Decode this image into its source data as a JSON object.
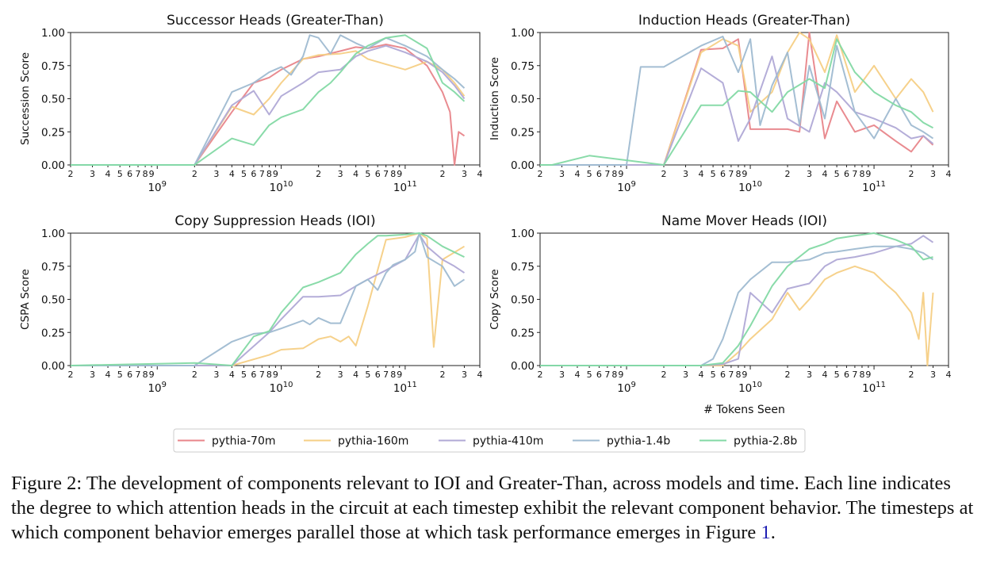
{
  "figure": {
    "legend": [
      {
        "name": "pythia-70m",
        "color": "#e8858a"
      },
      {
        "name": "pythia-160m",
        "color": "#f5cf85"
      },
      {
        "name": "pythia-410m",
        "color": "#b0a9d6"
      },
      {
        "name": "pythia-1.4b",
        "color": "#9fbbd1"
      },
      {
        "name": "pythia-2.8b",
        "color": "#83d9a4"
      }
    ],
    "caption": {
      "label": "Figure 2:",
      "text": "The development of components relevant to IOI and Greater-Than, across models and time. Each line indicates the degree to which attention heads in the circuit at each timestep exhibit the relevant component behavior. The timesteps at which component behavior emerges parallel those at which task performance emerges in Figure",
      "ref": "1",
      "end": "."
    }
  },
  "chart_data": [
    {
      "type": "line",
      "title": "Successor Heads (Greater-Than)",
      "xlabel": "",
      "ylabel": "Succession Score",
      "x_scale": "log",
      "xlim": [
        200000000.0,
        400000000000.0
      ],
      "ylim": [
        0,
        1
      ],
      "yticks": [
        "0.00",
        "0.25",
        "0.50",
        "0.75",
        "1.00"
      ],
      "series": [
        {
          "name": "pythia-70m",
          "x": [
            200000000.0,
            2000000000.0,
            4000000000.0,
            6000000000.0,
            8000000000.0,
            10000000000.0,
            15000000000.0,
            20000000000.0,
            30000000000.0,
            40000000000.0,
            50000000000.0,
            70000000000.0,
            100000000000.0,
            150000000000.0,
            200000000000.0,
            230000000000.0,
            250000000000.0,
            270000000000.0,
            300000000000.0
          ],
          "y": [
            0,
            0,
            0.4,
            0.62,
            0.66,
            0.72,
            0.8,
            0.82,
            0.86,
            0.89,
            0.88,
            0.91,
            0.88,
            0.75,
            0.55,
            0.4,
            0.0,
            0.25,
            0.22
          ]
        },
        {
          "name": "pythia-160m",
          "x": [
            200000000.0,
            2000000000.0,
            4000000000.0,
            6000000000.0,
            8000000000.0,
            10000000000.0,
            15000000000.0,
            20000000000.0,
            30000000000.0,
            40000000000.0,
            50000000000.0,
            70000000000.0,
            100000000000.0,
            150000000000.0,
            200000000000.0,
            250000000000.0,
            300000000000.0
          ],
          "y": [
            0,
            0,
            0.44,
            0.38,
            0.5,
            0.62,
            0.8,
            0.83,
            0.84,
            0.86,
            0.8,
            0.76,
            0.72,
            0.78,
            0.72,
            0.62,
            0.52
          ]
        },
        {
          "name": "pythia-410m",
          "x": [
            200000000.0,
            2000000000.0,
            4000000000.0,
            6000000000.0,
            8000000000.0,
            10000000000.0,
            15000000000.0,
            20000000000.0,
            30000000000.0,
            40000000000.0,
            50000000000.0,
            70000000000.0,
            100000000000.0,
            150000000000.0,
            200000000000.0,
            250000000000.0,
            300000000000.0
          ],
          "y": [
            0,
            0,
            0.45,
            0.56,
            0.38,
            0.52,
            0.62,
            0.7,
            0.72,
            0.82,
            0.86,
            0.9,
            0.85,
            0.78,
            0.7,
            0.6,
            0.5
          ]
        },
        {
          "name": "pythia-1.4b",
          "x": [
            200000000.0,
            2000000000.0,
            4000000000.0,
            6000000000.0,
            8000000000.0,
            10000000000.0,
            12000000000.0,
            15000000000.0,
            17000000000.0,
            20000000000.0,
            25000000000.0,
            30000000000.0,
            40000000000.0,
            50000000000.0,
            70000000000.0,
            100000000000.0,
            150000000000.0,
            200000000000.0,
            250000000000.0,
            300000000000.0
          ],
          "y": [
            0,
            0,
            0.55,
            0.62,
            0.7,
            0.74,
            0.68,
            0.82,
            0.98,
            0.96,
            0.84,
            0.98,
            0.92,
            0.88,
            0.96,
            0.9,
            0.82,
            0.72,
            0.65,
            0.58
          ]
        },
        {
          "name": "pythia-2.8b",
          "x": [
            200000000.0,
            2000000000.0,
            4000000000.0,
            6000000000.0,
            8000000000.0,
            10000000000.0,
            15000000000.0,
            20000000000.0,
            25000000000.0,
            30000000000.0,
            40000000000.0,
            50000000000.0,
            70000000000.0,
            100000000000.0,
            150000000000.0,
            200000000000.0,
            250000000000.0,
            300000000000.0
          ],
          "y": [
            0,
            0,
            0.2,
            0.15,
            0.3,
            0.36,
            0.42,
            0.55,
            0.62,
            0.7,
            0.84,
            0.9,
            0.96,
            0.98,
            0.88,
            0.62,
            0.55,
            0.48
          ]
        }
      ]
    },
    {
      "type": "line",
      "title": "Induction Heads (Greater-Than)",
      "xlabel": "",
      "ylabel": "Induction Score",
      "x_scale": "log",
      "xlim": [
        200000000.0,
        400000000000.0
      ],
      "ylim": [
        0,
        1
      ],
      "yticks": [
        "0.00",
        "0.25",
        "0.50",
        "0.75",
        "1.00"
      ],
      "series": [
        {
          "name": "pythia-70m",
          "x": [
            200000000.0,
            2000000000.0,
            4000000000.0,
            6000000000.0,
            8000000000.0,
            10000000000.0,
            20000000000.0,
            25000000000.0,
            30000000000.0,
            40000000000.0,
            50000000000.0,
            70000000000.0,
            100000000000.0,
            150000000000.0,
            200000000000.0,
            250000000000.0,
            300000000000.0
          ],
          "y": [
            0,
            0,
            0.87,
            0.88,
            0.95,
            0.27,
            0.27,
            0.25,
            1.0,
            0.2,
            0.48,
            0.25,
            0.3,
            0.18,
            0.1,
            0.22,
            0.15
          ]
        },
        {
          "name": "pythia-160m",
          "x": [
            200000000.0,
            2000000000.0,
            4000000000.0,
            6000000000.0,
            8000000000.0,
            10000000000.0,
            15000000000.0,
            20000000000.0,
            25000000000.0,
            30000000000.0,
            40000000000.0,
            50000000000.0,
            70000000000.0,
            100000000000.0,
            150000000000.0,
            200000000000.0,
            250000000000.0,
            300000000000.0
          ],
          "y": [
            0,
            0,
            0.85,
            0.95,
            0.9,
            0.4,
            0.55,
            0.85,
            1.0,
            0.95,
            0.7,
            0.98,
            0.55,
            0.75,
            0.5,
            0.65,
            0.55,
            0.4
          ]
        },
        {
          "name": "pythia-410m",
          "x": [
            200000000.0,
            2000000000.0,
            4000000000.0,
            6000000000.0,
            8000000000.0,
            10000000000.0,
            15000000000.0,
            20000000000.0,
            30000000000.0,
            40000000000.0,
            50000000000.0,
            70000000000.0,
            100000000000.0,
            150000000000.0,
            200000000000.0,
            250000000000.0,
            300000000000.0
          ],
          "y": [
            0,
            0,
            0.73,
            0.62,
            0.18,
            0.35,
            0.82,
            0.35,
            0.25,
            0.62,
            0.55,
            0.4,
            0.35,
            0.28,
            0.2,
            0.22,
            0.16
          ]
        },
        {
          "name": "pythia-1.4b",
          "x": [
            200000000.0,
            250000000.0,
            1000000000.0,
            1300000000.0,
            2000000000.0,
            4000000000.0,
            6000000000.0,
            8000000000.0,
            10000000000.0,
            12000000000.0,
            15000000000.0,
            20000000000.0,
            25000000000.0,
            30000000000.0,
            40000000000.0,
            50000000000.0,
            70000000000.0,
            100000000000.0,
            150000000000.0,
            200000000000.0,
            250000000000.0,
            300000000000.0
          ],
          "y": [
            0,
            0,
            0,
            0.74,
            0.74,
            0.9,
            0.97,
            0.7,
            0.95,
            0.3,
            0.6,
            0.85,
            0.3,
            0.75,
            0.35,
            0.9,
            0.4,
            0.2,
            0.5,
            0.3,
            0.25,
            0.2
          ]
        },
        {
          "name": "pythia-2.8b",
          "x": [
            200000000.0,
            250000000.0,
            500000000.0,
            2000000000.0,
            4000000000.0,
            6000000000.0,
            8000000000.0,
            10000000000.0,
            15000000000.0,
            20000000000.0,
            30000000000.0,
            40000000000.0,
            50000000000.0,
            70000000000.0,
            100000000000.0,
            150000000000.0,
            200000000000.0,
            250000000000.0,
            300000000000.0
          ],
          "y": [
            0,
            0,
            0.07,
            0,
            0.45,
            0.45,
            0.56,
            0.55,
            0.4,
            0.55,
            0.65,
            0.58,
            0.95,
            0.7,
            0.55,
            0.45,
            0.4,
            0.32,
            0.28
          ]
        }
      ]
    },
    {
      "type": "line",
      "title": "Copy Suppression Heads (IOI)",
      "xlabel": "",
      "ylabel": "CSPA Score",
      "x_scale": "log",
      "xlim": [
        200000000.0,
        400000000000.0
      ],
      "ylim": [
        0,
        1
      ],
      "yticks": [
        "0.00",
        "0.25",
        "0.50",
        "0.75",
        "1.00"
      ],
      "series": [
        {
          "name": "pythia-160m",
          "x": [
            200000000.0,
            2000000000.0,
            4000000000.0,
            8000000000.0,
            10000000000.0,
            15000000000.0,
            20000000000.0,
            25000000000.0,
            30000000000.0,
            35000000000.0,
            40000000000.0,
            50000000000.0,
            70000000000.0,
            100000000000.0,
            130000000000.0,
            150000000000.0,
            170000000000.0,
            200000000000.0,
            300000000000.0
          ],
          "y": [
            0,
            0,
            0,
            0.08,
            0.12,
            0.13,
            0.2,
            0.22,
            0.18,
            0.22,
            0.15,
            0.45,
            0.95,
            0.97,
            1.0,
            0.96,
            0.14,
            0.8,
            0.9
          ]
        },
        {
          "name": "pythia-410m",
          "x": [
            200000000.0,
            2000000000.0,
            4000000000.0,
            8000000000.0,
            10000000000.0,
            15000000000.0,
            20000000000.0,
            30000000000.0,
            40000000000.0,
            50000000000.0,
            70000000000.0,
            100000000000.0,
            130000000000.0,
            150000000000.0,
            200000000000.0,
            250000000000.0,
            300000000000.0
          ],
          "y": [
            0,
            0,
            0,
            0.25,
            0.35,
            0.52,
            0.52,
            0.53,
            0.6,
            0.65,
            0.72,
            0.8,
            0.99,
            0.9,
            0.8,
            0.75,
            0.7
          ]
        },
        {
          "name": "pythia-1.4b",
          "x": [
            200000000.0,
            2000000000.0,
            4000000000.0,
            6000000000.0,
            8000000000.0,
            10000000000.0,
            15000000000.0,
            17000000000.0,
            20000000000.0,
            25000000000.0,
            30000000000.0,
            40000000000.0,
            50000000000.0,
            60000000000.0,
            70000000000.0,
            80000000000.0,
            100000000000.0,
            120000000000.0,
            130000000000.0,
            150000000000.0,
            200000000000.0,
            250000000000.0,
            300000000000.0
          ],
          "y": [
            0,
            0,
            0.18,
            0.24,
            0.25,
            0.28,
            0.34,
            0.31,
            0.36,
            0.32,
            0.32,
            0.6,
            0.65,
            0.57,
            0.7,
            0.76,
            0.8,
            0.86,
            1.0,
            0.82,
            0.75,
            0.6,
            0.65
          ]
        },
        {
          "name": "pythia-2.8b",
          "x": [
            200000000.0,
            2000000000.0,
            4000000000.0,
            6000000000.0,
            8000000000.0,
            10000000000.0,
            15000000000.0,
            20000000000.0,
            30000000000.0,
            40000000000.0,
            50000000000.0,
            60000000000.0,
            70000000000.0,
            100000000000.0,
            130000000000.0,
            150000000000.0,
            200000000000.0,
            300000000000.0
          ],
          "y": [
            0,
            0.02,
            0,
            0.22,
            0.26,
            0.4,
            0.59,
            0.63,
            0.7,
            0.84,
            0.92,
            0.98,
            0.98,
            0.99,
            1.0,
            0.98,
            0.9,
            0.82
          ]
        }
      ]
    },
    {
      "type": "line",
      "title": "Name Mover Heads (IOI)",
      "xlabel": "# Tokens Seen",
      "ylabel": "Copy Score",
      "x_scale": "log",
      "xlim": [
        200000000.0,
        400000000000.0
      ],
      "ylim": [
        0,
        1
      ],
      "yticks": [
        "0.00",
        "0.25",
        "0.50",
        "0.75",
        "1.00"
      ],
      "series": [
        {
          "name": "pythia-160m",
          "x": [
            200000000.0,
            2000000000.0,
            4000000000.0,
            6000000000.0,
            8000000000.0,
            10000000000.0,
            15000000000.0,
            20000000000.0,
            25000000000.0,
            30000000000.0,
            40000000000.0,
            50000000000.0,
            70000000000.0,
            100000000000.0,
            130000000000.0,
            150000000000.0,
            200000000000.0,
            230000000000.0,
            250000000000.0,
            270000000000.0,
            300000000000.0
          ],
          "y": [
            0,
            0,
            0,
            0,
            0.1,
            0.2,
            0.35,
            0.55,
            0.42,
            0.5,
            0.65,
            0.7,
            0.75,
            0.7,
            0.6,
            0.55,
            0.4,
            0.2,
            0.55,
            0.0,
            0.55
          ]
        },
        {
          "name": "pythia-410m",
          "x": [
            200000000.0,
            2000000000.0,
            4000000000.0,
            6000000000.0,
            8000000000.0,
            10000000000.0,
            15000000000.0,
            20000000000.0,
            30000000000.0,
            40000000000.0,
            50000000000.0,
            70000000000.0,
            100000000000.0,
            150000000000.0,
            200000000000.0,
            250000000000.0,
            300000000000.0
          ],
          "y": [
            0,
            0,
            0,
            0.01,
            0.05,
            0.55,
            0.4,
            0.58,
            0.62,
            0.75,
            0.8,
            0.82,
            0.85,
            0.9,
            0.92,
            0.98,
            0.93
          ]
        },
        {
          "name": "pythia-1.4b",
          "x": [
            200000000.0,
            2000000000.0,
            4000000000.0,
            5000000000.0,
            6000000000.0,
            8000000000.0,
            10000000000.0,
            15000000000.0,
            20000000000.0,
            30000000000.0,
            40000000000.0,
            50000000000.0,
            70000000000.0,
            100000000000.0,
            150000000000.0,
            200000000000.0,
            250000000000.0,
            300000000000.0
          ],
          "y": [
            0,
            0,
            0,
            0.05,
            0.2,
            0.55,
            0.65,
            0.78,
            0.78,
            0.8,
            0.85,
            0.86,
            0.88,
            0.9,
            0.9,
            0.88,
            0.85,
            0.8
          ]
        },
        {
          "name": "pythia-2.8b",
          "x": [
            200000000.0,
            2000000000.0,
            4000000000.0,
            6000000000.0,
            8000000000.0,
            10000000000.0,
            15000000000.0,
            20000000000.0,
            30000000000.0,
            40000000000.0,
            50000000000.0,
            70000000000.0,
            100000000000.0,
            150000000000.0,
            200000000000.0,
            250000000000.0,
            300000000000.0
          ],
          "y": [
            0,
            0,
            0,
            0.02,
            0.15,
            0.3,
            0.6,
            0.75,
            0.88,
            0.92,
            0.96,
            0.98,
            1.0,
            0.95,
            0.9,
            0.8,
            0.82
          ]
        }
      ]
    }
  ]
}
